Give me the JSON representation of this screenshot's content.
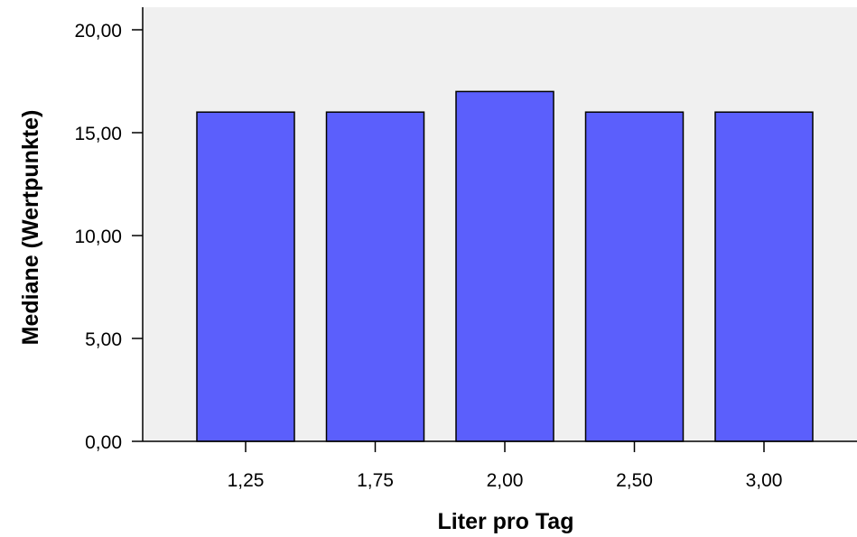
{
  "chart_data": {
    "type": "bar",
    "categories": [
      "1,25",
      "1,75",
      "2,00",
      "2,50",
      "3,00"
    ],
    "values": [
      16,
      16,
      17,
      16,
      16
    ],
    "title": "",
    "xlabel": "Liter pro Tag",
    "ylabel": "Mediane (Wertpunkte)",
    "ylim": [
      0,
      20
    ],
    "yticks": [
      "0,00",
      "5,00",
      "10,00",
      "15,00",
      "20,00"
    ],
    "ytick_values": [
      0,
      5,
      10,
      15,
      20
    ],
    "grid": false,
    "legend": "none",
    "colors": {
      "bar_fill": "#5b5ffc",
      "bar_stroke": "#000000",
      "plot_background": "#f0f0f0",
      "axis": "#000000"
    }
  }
}
